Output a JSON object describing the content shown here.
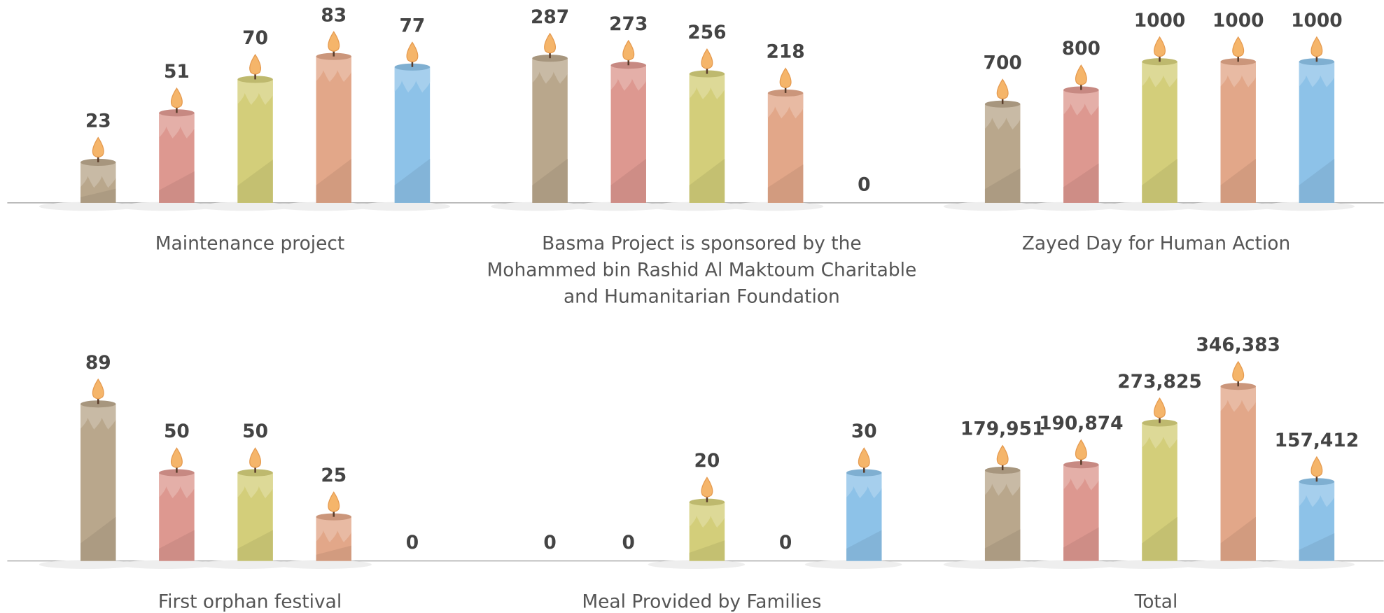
{
  "chart_data": [
    {
      "type": "bar",
      "title": [
        "Maintenance project"
      ],
      "values": [
        23,
        51,
        70,
        83,
        77
      ],
      "ylim": [
        0,
        100
      ],
      "colors": [
        "#b9a78c",
        "#dd9890",
        "#d3ce7a",
        "#e2a789",
        "#8dc2e8"
      ]
    },
    {
      "type": "bar",
      "title": [
        "Basma Project is sponsored by the",
        "Mohammed bin Rashid Al Maktoum Charitable",
        "and Humanitarian Foundation"
      ],
      "values": [
        287,
        273,
        256,
        218,
        0
      ],
      "ylim": [
        0,
        350
      ],
      "colors": [
        "#b9a78c",
        "#dd9890",
        "#d3ce7a",
        "#e2a789",
        "#8dc2e8"
      ]
    },
    {
      "type": "bar",
      "title": [
        "Zayed Day for Human Action"
      ],
      "values": [
        700,
        800,
        1000,
        1000,
        1000
      ],
      "ylim": [
        0,
        1250
      ],
      "colors": [
        "#b9a78c",
        "#dd9890",
        "#d3ce7a",
        "#e2a789",
        "#8dc2e8"
      ]
    },
    {
      "type": "bar",
      "title": [
        "First orphan festival"
      ],
      "values": [
        89,
        50,
        50,
        25,
        0
      ],
      "ylim": [
        0,
        100
      ],
      "colors": [
        "#b9a78c",
        "#dd9890",
        "#d3ce7a",
        "#e2a789",
        "#8dc2e8"
      ]
    },
    {
      "type": "bar",
      "title": [
        "Meal Provided by Families"
      ],
      "values": [
        0,
        0,
        20,
        0,
        30
      ],
      "ylim": [
        0,
        60
      ],
      "colors": [
        "#b9a78c",
        "#dd9890",
        "#d3ce7a",
        "#e2a789",
        "#8dc2e8"
      ]
    },
    {
      "type": "bar",
      "title": [
        "Total"
      ],
      "values": [
        179951,
        190874,
        273825,
        346383,
        157412
      ],
      "value_labels": [
        "179,951",
        "190,874",
        "273,825",
        "346,383",
        "157,412"
      ],
      "ylim": [
        0,
        350000
      ],
      "colors": [
        "#b9a78c",
        "#dd9890",
        "#d3ce7a",
        "#e2a789",
        "#8dc2e8"
      ]
    }
  ]
}
